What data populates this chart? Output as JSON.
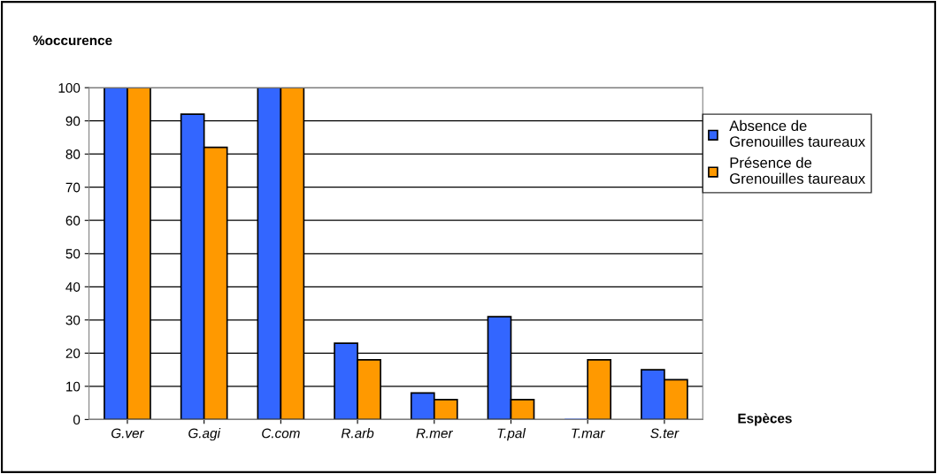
{
  "chart_data": {
    "type": "bar",
    "ylabel": "%occurence",
    "xlabel": "Espèces",
    "categories": [
      "G.ver",
      "G.agi",
      "C.com",
      "R.arb",
      "R.mer",
      "T.pal",
      "T.mar",
      "S.ter"
    ],
    "series": [
      {
        "name": "Absence de\nGrenouilles taureaux",
        "color": "#3366ff",
        "values": [
          100,
          92,
          100,
          23,
          8,
          31,
          0,
          15
        ]
      },
      {
        "name": "Présence de\nGrenouilles taureaux",
        "color": "#ff9900",
        "values": [
          100,
          82,
          100,
          18,
          6,
          6,
          18,
          12
        ]
      }
    ],
    "ylim": [
      0,
      100
    ],
    "yticks": [
      0,
      10,
      20,
      30,
      40,
      50,
      60,
      70,
      80,
      90,
      100
    ],
    "grid": "y",
    "legend": "right"
  }
}
